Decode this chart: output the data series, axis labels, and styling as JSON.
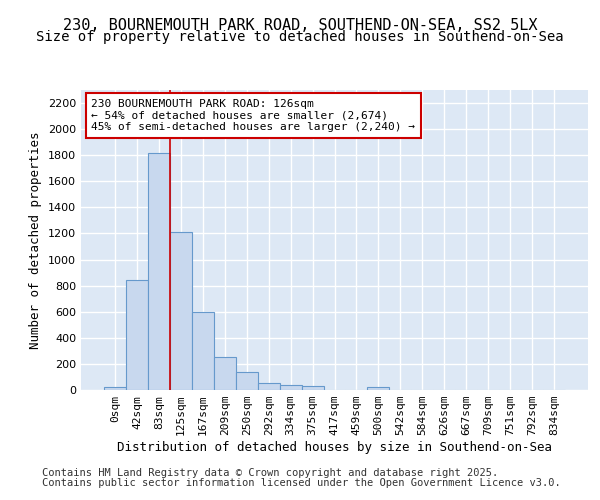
{
  "title_line1": "230, BOURNEMOUTH PARK ROAD, SOUTHEND-ON-SEA, SS2 5LX",
  "title_line2": "Size of property relative to detached houses in Southend-on-Sea",
  "xlabel": "Distribution of detached houses by size in Southend-on-Sea",
  "ylabel": "Number of detached properties",
  "footer_line1": "Contains HM Land Registry data © Crown copyright and database right 2025.",
  "footer_line2": "Contains public sector information licensed under the Open Government Licence v3.0.",
  "categories": [
    "0sqm",
    "42sqm",
    "83sqm",
    "125sqm",
    "167sqm",
    "209sqm",
    "250sqm",
    "292sqm",
    "334sqm",
    "375sqm",
    "417sqm",
    "459sqm",
    "500sqm",
    "542sqm",
    "584sqm",
    "626sqm",
    "667sqm",
    "709sqm",
    "751sqm",
    "792sqm",
    "834sqm"
  ],
  "values": [
    25,
    845,
    1820,
    1210,
    600,
    255,
    138,
    50,
    40,
    28,
    0,
    0,
    20,
    0,
    0,
    0,
    0,
    0,
    0,
    0,
    0
  ],
  "bar_color": "#c8d8ee",
  "bar_edge_color": "#6699cc",
  "vline_color": "#cc0000",
  "annotation_text": "230 BOURNEMOUTH PARK ROAD: 126sqm\n← 54% of detached houses are smaller (2,674)\n45% of semi-detached houses are larger (2,240) →",
  "annotation_box_color": "#cc0000",
  "ylim": [
    0,
    2300
  ],
  "yticks": [
    0,
    200,
    400,
    600,
    800,
    1000,
    1200,
    1400,
    1600,
    1800,
    2000,
    2200
  ],
  "background_color": "#dde8f5",
  "grid_color": "#ffffff",
  "fig_background": "#ffffff",
  "title_fontsize": 11,
  "subtitle_fontsize": 10,
  "axis_label_fontsize": 9,
  "tick_fontsize": 8,
  "footer_fontsize": 7.5,
  "annotation_fontsize": 8
}
